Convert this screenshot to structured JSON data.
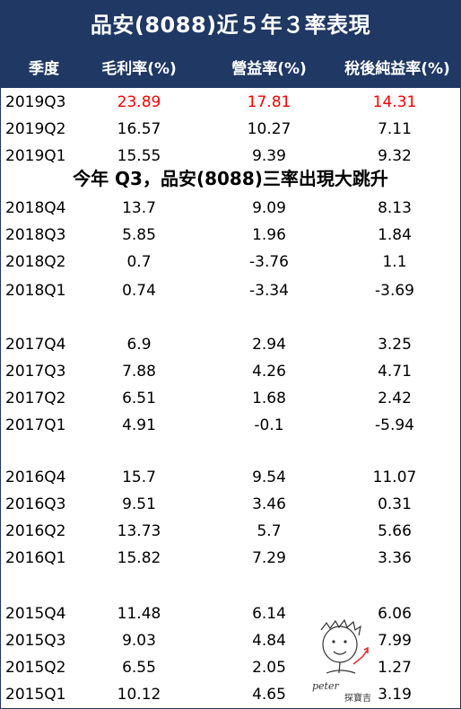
{
  "title": "品安(8088)近５年３率表現",
  "columns": [
    "季度",
    "毛利率(%)",
    "營益率(%)",
    "稅後純益率(%)"
  ],
  "note": "今年 Q3，品安(8088)三率出現大跳升",
  "highlight_color": "#ff0000",
  "header_color": "#1f3864",
  "rows": [
    {
      "q": "2019Q3",
      "gm": "23.89",
      "om": "17.81",
      "nm": "14.31"
    },
    {
      "q": "2019Q2",
      "gm": "16.57",
      "om": "10.27",
      "nm": "7.11"
    },
    {
      "q": "2019Q1",
      "gm": "15.55",
      "om": "9.39",
      "nm": "9.32"
    },
    {
      "q": "2018Q4",
      "gm": "13.7",
      "om": "9.09",
      "nm": "8.13"
    },
    {
      "q": "2018Q3",
      "gm": "5.85",
      "om": "1.96",
      "nm": "1.84"
    },
    {
      "q": "2018Q2",
      "gm": "0.7",
      "om": "-3.76",
      "nm": "1.1"
    },
    {
      "q": "2018Q1",
      "gm": "0.74",
      "om": "-3.34",
      "nm": "-3.69"
    },
    {
      "q": "2017Q4",
      "gm": "6.9",
      "om": "2.94",
      "nm": "3.25"
    },
    {
      "q": "2017Q3",
      "gm": "7.88",
      "om": "4.26",
      "nm": "4.71"
    },
    {
      "q": "2017Q2",
      "gm": "6.51",
      "om": "1.68",
      "nm": "2.42"
    },
    {
      "q": "2017Q1",
      "gm": "4.91",
      "om": "-0.1",
      "nm": "-5.94"
    },
    {
      "q": "2016Q4",
      "gm": "15.7",
      "om": "9.54",
      "nm": "11.07"
    },
    {
      "q": "2016Q3",
      "gm": "9.51",
      "om": "3.46",
      "nm": "0.31"
    },
    {
      "q": "2016Q2",
      "gm": "13.73",
      "om": "5.7",
      "nm": "5.66"
    },
    {
      "q": "2016Q1",
      "gm": "15.82",
      "om": "7.29",
      "nm": "3.36"
    },
    {
      "q": "2015Q4",
      "gm": "11.48",
      "om": "6.14",
      "nm": "6.06"
    },
    {
      "q": "2015Q3",
      "gm": "9.03",
      "om": "4.84",
      "nm": "7.99"
    },
    {
      "q": "2015Q2",
      "gm": "6.55",
      "om": "2.05",
      "nm": "1.27"
    },
    {
      "q": "2015Q1",
      "gm": "10.12",
      "om": "4.65",
      "nm": "3.19"
    }
  ],
  "signature": {
    "name": "peter",
    "sub": "探寶吉"
  }
}
